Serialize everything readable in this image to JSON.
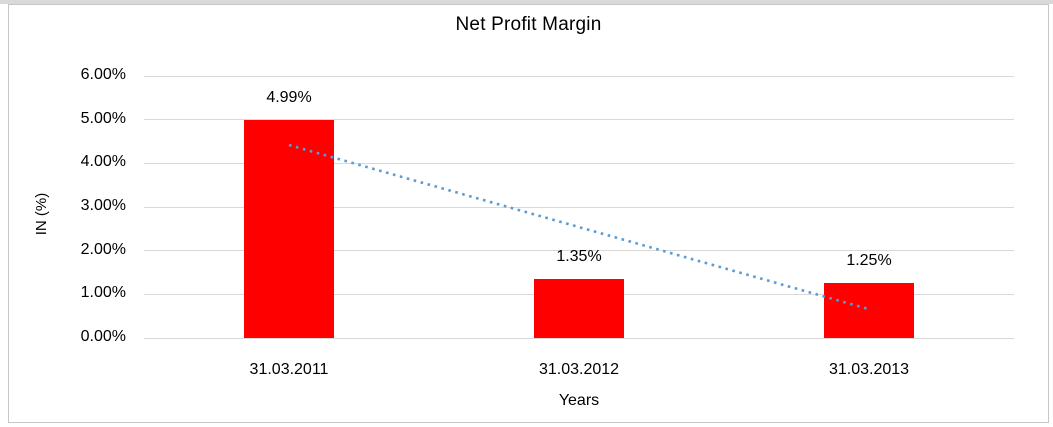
{
  "window": {
    "top_strip_color": "#d9d9d9",
    "frame_border_color": "#c6c6c6",
    "background_color": "#ffffff"
  },
  "chart_data": {
    "type": "bar",
    "title": "Net Profit Margin",
    "xlabel": "Years",
    "ylabel": "IN (%)",
    "categories": [
      "31.03.2011",
      "31.03.2012",
      "31.03.2013"
    ],
    "values": [
      4.99,
      1.35,
      1.25
    ],
    "value_labels": [
      "4.99%",
      "1.35%",
      "1.25%"
    ],
    "unit": "%",
    "ylim": [
      0,
      6
    ],
    "y_tick_step": 1,
    "y_ticks": [
      "6.00%",
      "5.00%",
      "4.00%",
      "3.00%",
      "2.00%",
      "1.00%",
      "0.00%"
    ],
    "grid": true,
    "gridline_color": "#d9d9d9",
    "legend": "none",
    "bar_color": "#ff0000",
    "text_color": "#000000",
    "trendline": {
      "type": "linear",
      "style": "dotted",
      "color": "#5b9bd5",
      "points_percent": [
        4.42,
        2.54,
        0.66
      ]
    }
  }
}
